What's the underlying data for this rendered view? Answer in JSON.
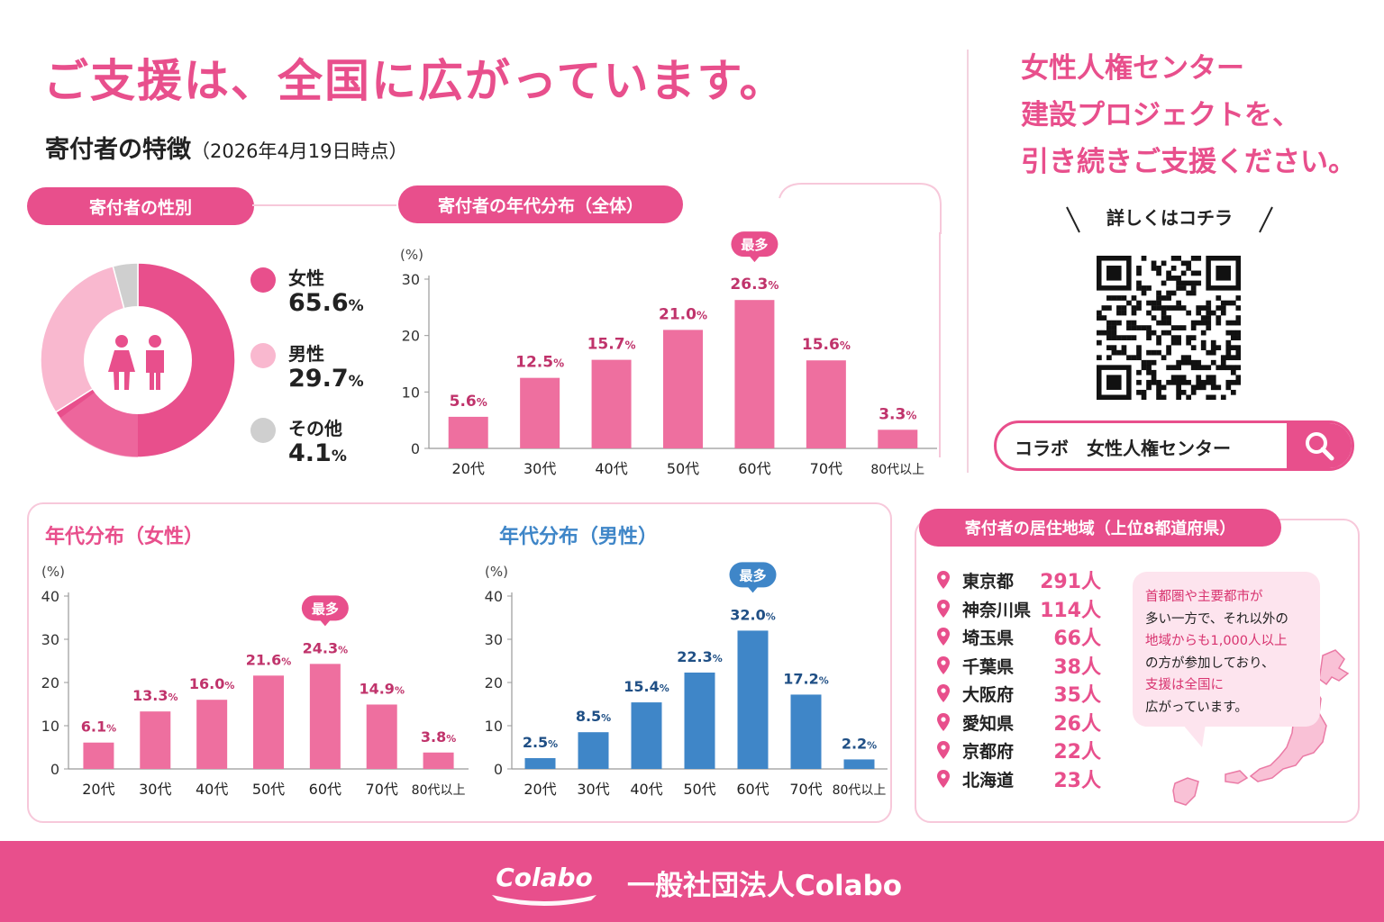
{
  "header": {
    "headline": "ご支援は、全国に広がっています。",
    "subtitle": "寄付者の特徴",
    "date_note": "（2026年4月19日時点）"
  },
  "cta": {
    "line1": "女性人権センター",
    "line2": "建設プロジェクトを、",
    "line3": "引き続きご支援ください。",
    "qr_caption": "詳しくはコチラ",
    "search_value": "コラボ　女性人権センター"
  },
  "gender": {
    "title": "寄付者の性別",
    "items": [
      {
        "label": "女性",
        "value": "65.6",
        "unit": "%"
      },
      {
        "label": "男性",
        "value": "29.7",
        "unit": "%"
      },
      {
        "label": "その他",
        "value": "4.1",
        "unit": "%"
      }
    ]
  },
  "charts_meta": {
    "overall_title": "寄付者の年代分布（全体）",
    "female_title": "年代分布（女性）",
    "male_title": "年代分布（男性）",
    "max_badge": "最多",
    "unit_label": "(%)",
    "value_suffix": "%"
  },
  "chart_data": [
    {
      "type": "pie",
      "title": "寄付者の性別",
      "categories": [
        "女性",
        "男性",
        "その他"
      ],
      "values": [
        65.6,
        29.7,
        4.1
      ],
      "colors": [
        "#e84f8c",
        "#f9b8cf",
        "#cfcfcf"
      ]
    },
    {
      "type": "bar",
      "title": "寄付者の年代分布（全体）",
      "categories": [
        "20代",
        "30代",
        "40代",
        "50代",
        "60代",
        "70代",
        "80代以上"
      ],
      "values": [
        5.6,
        12.5,
        15.7,
        21.0,
        26.3,
        15.6,
        3.3
      ],
      "ylabel": "(%)",
      "ylim": [
        0,
        30
      ],
      "yticks": [
        0,
        10,
        20,
        30
      ],
      "highlight": "60代",
      "color": "#ee6f9f",
      "label_color": "#c0336b"
    },
    {
      "type": "bar",
      "title": "年代分布（女性）",
      "categories": [
        "20代",
        "30代",
        "40代",
        "50代",
        "60代",
        "70代",
        "80代以上"
      ],
      "values": [
        6.1,
        13.3,
        16.0,
        21.6,
        24.3,
        14.9,
        3.8
      ],
      "ylabel": "(%)",
      "ylim": [
        0,
        40
      ],
      "yticks": [
        0,
        10,
        20,
        30,
        40
      ],
      "highlight": "60代",
      "color": "#ee6f9f",
      "label_color": "#c0336b"
    },
    {
      "type": "bar",
      "title": "年代分布（男性）",
      "categories": [
        "20代",
        "30代",
        "40代",
        "50代",
        "60代",
        "70代",
        "80代以上"
      ],
      "values": [
        2.5,
        8.5,
        15.4,
        22.3,
        32.0,
        17.2,
        2.2
      ],
      "ylabel": "(%)",
      "ylim": [
        0,
        40
      ],
      "yticks": [
        0,
        10,
        20,
        30,
        40
      ],
      "highlight": "60代",
      "color": "#3f86c8",
      "label_color": "#1f4f85"
    }
  ],
  "regions": {
    "title": "寄付者の居住地域（上位8都道府県）",
    "items": [
      {
        "name": "東京都",
        "count": "291人"
      },
      {
        "name": "神奈川県",
        "count": "114人"
      },
      {
        "name": "埼玉県",
        "count": "66人"
      },
      {
        "name": "千葉県",
        "count": "38人"
      },
      {
        "name": "大阪府",
        "count": "35人"
      },
      {
        "name": "愛知県",
        "count": "26人"
      },
      {
        "name": "京都府",
        "count": "22人"
      },
      {
        "name": "北海道",
        "count": "23人"
      }
    ],
    "note": [
      "首都圏や主要都市が",
      "多い一方で、それ以外の",
      "地域からも1,000人以上",
      "の方が参加しており、",
      "支援は全国に",
      "広がっています。"
    ]
  },
  "footer": {
    "logo_text": "Colabo",
    "org": "一般社団法人Colabo"
  },
  "colors": {
    "pink": "#e84f8c",
    "light_pink": "#f9b8cf",
    "gray": "#cfcfcf",
    "blue": "#3f86c8"
  }
}
